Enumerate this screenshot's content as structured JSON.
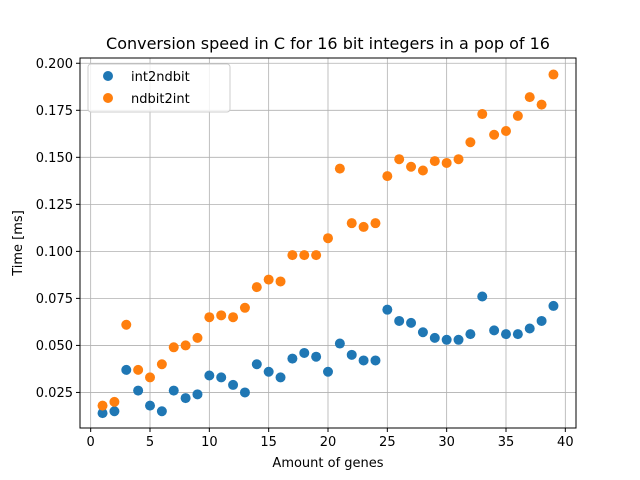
{
  "chart_data": {
    "type": "scatter",
    "title": "Conversion speed in C for 16 bit integers in a pop of 16",
    "xlabel": "Amount of genes",
    "ylabel": "Time [ms]",
    "xlim": [
      -0.9,
      40.9
    ],
    "ylim": [
      0.0061,
      0.2028
    ],
    "xticks": [
      0,
      5,
      10,
      15,
      20,
      25,
      30,
      35,
      40
    ],
    "yticks": [
      0.025,
      0.05,
      0.075,
      0.1,
      0.125,
      0.15,
      0.175,
      0.2
    ],
    "xtick_labels": [
      "0",
      "5",
      "10",
      "15",
      "20",
      "25",
      "30",
      "35",
      "40"
    ],
    "ytick_labels": [
      "0.025",
      "0.050",
      "0.075",
      "0.100",
      "0.125",
      "0.150",
      "0.175",
      "0.200"
    ],
    "grid": true,
    "legend_position": "top-left",
    "series": [
      {
        "name": "int2ndbit",
        "color": "#1f77b4",
        "x": [
          1,
          2,
          3,
          4,
          5,
          6,
          7,
          8,
          9,
          10,
          11,
          12,
          13,
          14,
          15,
          16,
          17,
          18,
          19,
          20,
          21,
          22,
          23,
          24,
          25,
          26,
          27,
          28,
          29,
          30,
          31,
          32,
          33,
          34,
          35,
          36,
          37,
          38,
          39
        ],
        "y": [
          0.014,
          0.015,
          0.037,
          0.026,
          0.018,
          0.015,
          0.026,
          0.022,
          0.024,
          0.034,
          0.033,
          0.029,
          0.025,
          0.04,
          0.036,
          0.033,
          0.043,
          0.046,
          0.044,
          0.036,
          0.051,
          0.045,
          0.042,
          0.042,
          0.069,
          0.063,
          0.062,
          0.057,
          0.054,
          0.053,
          0.053,
          0.056,
          0.076,
          0.058,
          0.056,
          0.056,
          0.059,
          0.063,
          0.071
        ]
      },
      {
        "name": "ndbit2int",
        "color": "#ff7f0e",
        "x": [
          1,
          2,
          3,
          4,
          5,
          6,
          7,
          8,
          9,
          10,
          11,
          12,
          13,
          14,
          15,
          16,
          17,
          18,
          19,
          20,
          21,
          22,
          23,
          24,
          25,
          26,
          27,
          28,
          29,
          30,
          31,
          32,
          33,
          34,
          35,
          36,
          37,
          38,
          39
        ],
        "y": [
          0.018,
          0.02,
          0.061,
          0.037,
          0.033,
          0.04,
          0.049,
          0.05,
          0.054,
          0.065,
          0.066,
          0.065,
          0.07,
          0.081,
          0.085,
          0.084,
          0.098,
          0.098,
          0.098,
          0.107,
          0.144,
          0.115,
          0.113,
          0.115,
          0.14,
          0.149,
          0.145,
          0.143,
          0.148,
          0.147,
          0.149,
          0.158,
          0.173,
          0.162,
          0.164,
          0.172,
          0.182,
          0.178,
          0.194
        ]
      }
    ]
  }
}
